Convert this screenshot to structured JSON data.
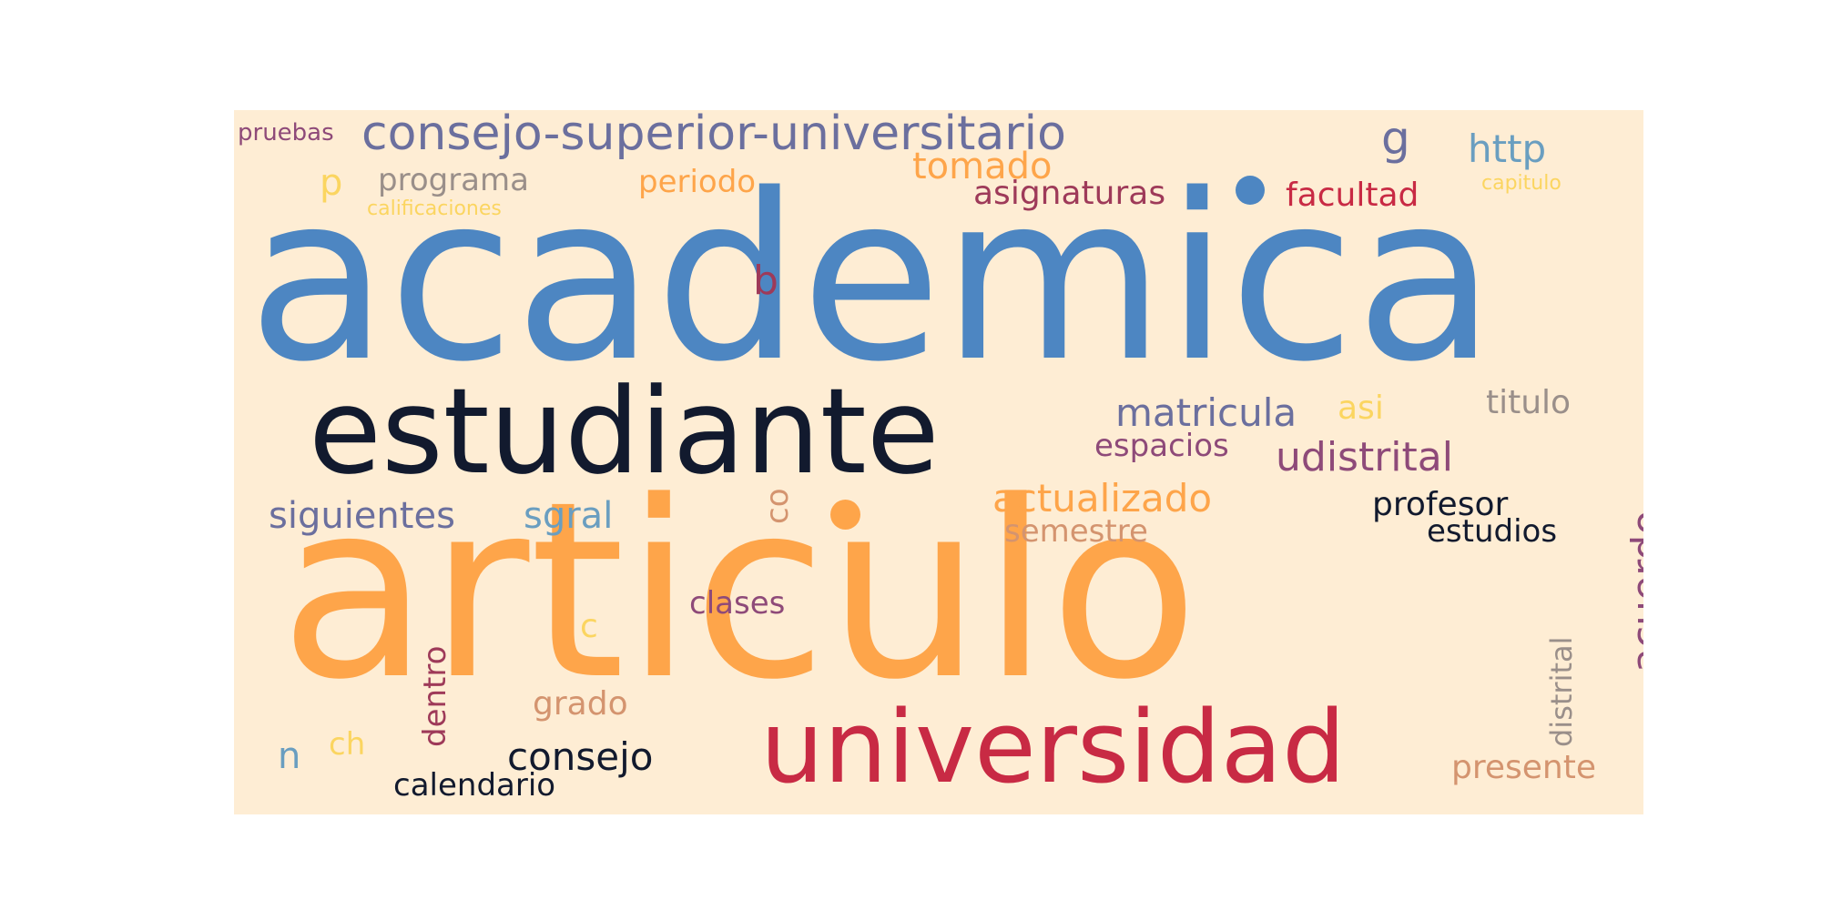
{
  "colors": {
    "background": "#feedd4",
    "blue": "#4d86c2",
    "orange": "#fea54a",
    "crimson": "#c82a44",
    "navy": "#121a2e",
    "slate": "#6b6f9e",
    "plum": "#8e4a79",
    "rose": "#9e3a59",
    "steel": "#6a9ec0",
    "yellow": "#fbd560",
    "tan": "#d4946f",
    "gray": "#9a8f8a"
  },
  "words": {
    "academica": "academica",
    "articulo": "articulo",
    "estudiante": "estudiante",
    "universidad": "universidad",
    "consejo_superior": "consejo-superior-universitario",
    "pruebas": "pruebas",
    "g": "g",
    "http": "http",
    "p": "p",
    "programa": "programa",
    "periodo": "periodo",
    "tomado": "tomado",
    "asignaturas": "asignaturas",
    "facultad": "facultad",
    "capitulo": "capitulo",
    "calificaciones": "calificaciones",
    "b": "b",
    "matricula": "matricula",
    "asi": "asi",
    "titulo": "titulo",
    "espacios": "espacios",
    "udistrital": "udistrital",
    "actualizado": "actualizado",
    "profesor": "profesor",
    "estudios": "estudios",
    "siguientes": "siguientes",
    "sgral": "sgral",
    "co": "co",
    "semestre": "semestre",
    "acuerdo": "acuerdo",
    "clases": "clases",
    "c": "c",
    "dentro": "dentro",
    "distrital": "distrital",
    "grado": "grado",
    "n": "n",
    "ch": "ch",
    "consejo": "consejo",
    "calendario": "calendario",
    "presente": "presente"
  }
}
